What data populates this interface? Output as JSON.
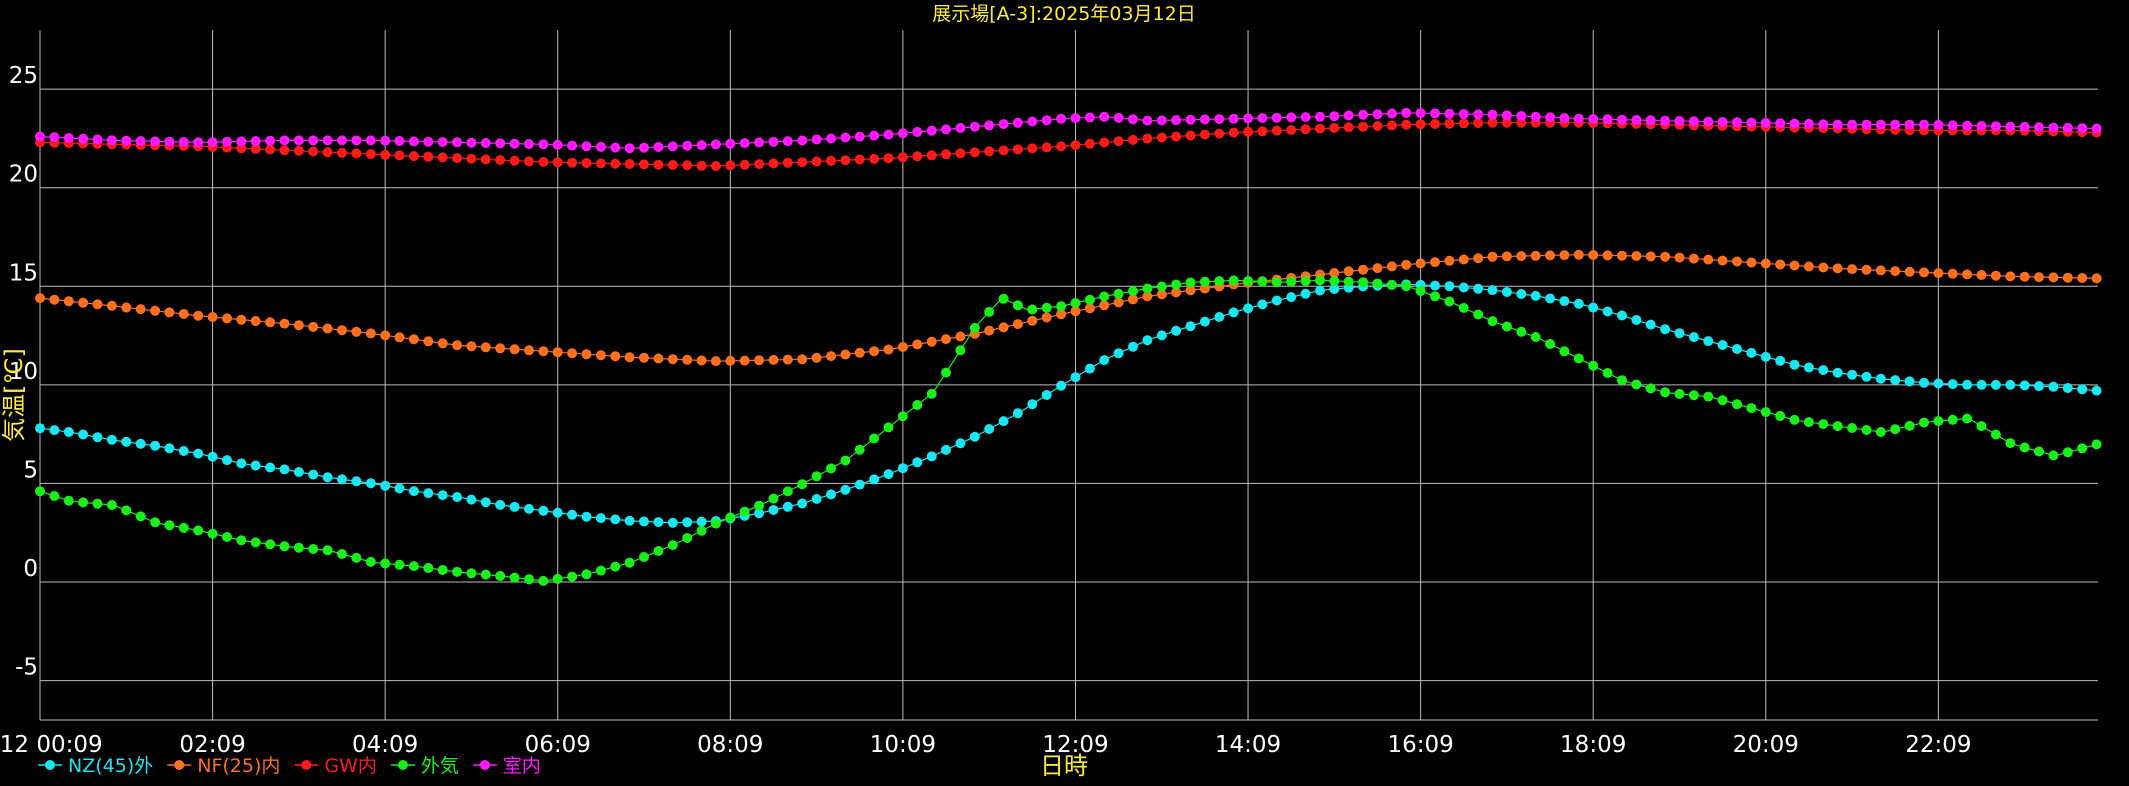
{
  "chart_data": {
    "type": "line",
    "title": "展示場[A-3]:2025年03月12日",
    "xlabel": "日時",
    "ylabel": "気温[℃]",
    "ylim": [
      -7,
      28
    ],
    "xlim_hours": [
      0.15,
      24.0
    ],
    "y_ticks": [
      "25",
      "20",
      "15",
      "10",
      "5",
      "0",
      "-5"
    ],
    "x_tick_labels": [
      "3/12 00:09",
      "02:09",
      "04:09",
      "06:09",
      "08:09",
      "10:09",
      "12:09",
      "14:09",
      "16:09",
      "18:09",
      "20:09",
      "22:09"
    ],
    "grid": true,
    "legend_position": "bottom-left",
    "colors": {
      "NZ(45)外": "#18e6f0",
      "NF(25)内": "#ff6f1e",
      "GW内": "#ff1a1a",
      "外気": "#19f019",
      "室内": "#ff19ff"
    },
    "series": [
      {
        "name": "NZ(45)外",
        "color": "#18e6f0",
        "points": [
          [
            0.15,
            7.8
          ],
          [
            0.5,
            7.6
          ],
          [
            1,
            7.2
          ],
          [
            1.5,
            6.9
          ],
          [
            2,
            6.5
          ],
          [
            2.5,
            6.0
          ],
          [
            3,
            5.7
          ],
          [
            3.5,
            5.3
          ],
          [
            4,
            5.0
          ],
          [
            4.5,
            4.6
          ],
          [
            5,
            4.3
          ],
          [
            5.5,
            3.9
          ],
          [
            6,
            3.6
          ],
          [
            6.5,
            3.3
          ],
          [
            7,
            3.1
          ],
          [
            7.5,
            3.0
          ],
          [
            8,
            3.1
          ],
          [
            8.5,
            3.5
          ],
          [
            9,
            4.0
          ],
          [
            9.5,
            4.7
          ],
          [
            10,
            5.5
          ],
          [
            10.5,
            6.4
          ],
          [
            11,
            7.4
          ],
          [
            11.5,
            8.6
          ],
          [
            12,
            10.0
          ],
          [
            12.5,
            11.3
          ],
          [
            13,
            12.3
          ],
          [
            13.5,
            13.0
          ],
          [
            14,
            13.7
          ],
          [
            14.5,
            14.3
          ],
          [
            15,
            14.8
          ],
          [
            15.5,
            15.0
          ],
          [
            16,
            15.1
          ],
          [
            16.5,
            15.0
          ],
          [
            17,
            14.8
          ],
          [
            17.5,
            14.5
          ],
          [
            18,
            14.1
          ],
          [
            18.5,
            13.5
          ],
          [
            19,
            12.8
          ],
          [
            19.5,
            12.2
          ],
          [
            20,
            11.6
          ],
          [
            20.5,
            11.0
          ],
          [
            21,
            10.6
          ],
          [
            21.5,
            10.3
          ],
          [
            22,
            10.1
          ],
          [
            22.5,
            10.0
          ],
          [
            23,
            10.0
          ],
          [
            23.5,
            9.9
          ],
          [
            24,
            9.7
          ]
        ]
      },
      {
        "name": "NF(25)内",
        "color": "#ff6f1e",
        "points": [
          [
            0.15,
            14.4
          ],
          [
            1,
            14.0
          ],
          [
            2,
            13.5
          ],
          [
            3,
            13.1
          ],
          [
            4,
            12.6
          ],
          [
            5,
            12.0
          ],
          [
            6,
            11.7
          ],
          [
            7,
            11.4
          ],
          [
            8,
            11.2
          ],
          [
            9,
            11.3
          ],
          [
            10,
            11.8
          ],
          [
            11,
            12.6
          ],
          [
            12,
            13.6
          ],
          [
            13,
            14.5
          ],
          [
            14,
            15.1
          ],
          [
            15,
            15.6
          ],
          [
            16,
            16.1
          ],
          [
            17,
            16.5
          ],
          [
            18,
            16.6
          ],
          [
            19,
            16.5
          ],
          [
            20,
            16.2
          ],
          [
            21,
            15.9
          ],
          [
            22,
            15.7
          ],
          [
            23,
            15.5
          ],
          [
            24,
            15.4
          ]
        ]
      },
      {
        "name": "GW内",
        "color": "#ff1a1a",
        "points": [
          [
            0.15,
            22.3
          ],
          [
            1,
            22.2
          ],
          [
            2,
            22.1
          ],
          [
            3,
            21.9
          ],
          [
            4,
            21.7
          ],
          [
            5,
            21.5
          ],
          [
            6,
            21.3
          ],
          [
            7,
            21.2
          ],
          [
            8,
            21.1
          ],
          [
            9,
            21.3
          ],
          [
            10,
            21.5
          ],
          [
            11,
            21.8
          ],
          [
            12,
            22.1
          ],
          [
            13,
            22.5
          ],
          [
            14,
            22.8
          ],
          [
            15,
            23.0
          ],
          [
            16,
            23.2
          ],
          [
            17,
            23.3
          ],
          [
            18,
            23.3
          ],
          [
            19,
            23.2
          ],
          [
            20,
            23.1
          ],
          [
            21,
            23.0
          ],
          [
            22,
            22.9
          ],
          [
            23,
            22.9
          ],
          [
            24,
            22.8
          ]
        ]
      },
      {
        "name": "外気",
        "color": "#19f019",
        "points": [
          [
            0.15,
            4.6
          ],
          [
            0.5,
            4.1
          ],
          [
            1,
            3.9
          ],
          [
            1.5,
            3.0
          ],
          [
            2,
            2.6
          ],
          [
            2.5,
            2.1
          ],
          [
            3,
            1.8
          ],
          [
            3.5,
            1.6
          ],
          [
            4,
            1.0
          ],
          [
            4.5,
            0.8
          ],
          [
            5,
            0.5
          ],
          [
            5.5,
            0.3
          ],
          [
            6,
            0.05
          ],
          [
            6.5,
            0.4
          ],
          [
            7,
            1.0
          ],
          [
            7.5,
            1.9
          ],
          [
            8,
            3.0
          ],
          [
            8.5,
            3.9
          ],
          [
            9,
            5.0
          ],
          [
            9.5,
            6.2
          ],
          [
            10,
            7.9
          ],
          [
            10.5,
            9.6
          ],
          [
            11,
            13.0
          ],
          [
            11.3,
            14.4
          ],
          [
            11.6,
            13.8
          ],
          [
            12,
            14.0
          ],
          [
            12.5,
            14.5
          ],
          [
            13,
            14.9
          ],
          [
            13.5,
            15.2
          ],
          [
            14,
            15.3
          ],
          [
            14.5,
            15.2
          ],
          [
            15,
            15.3
          ],
          [
            15.5,
            15.2
          ],
          [
            16,
            15.0
          ],
          [
            16.5,
            14.2
          ],
          [
            17,
            13.2
          ],
          [
            17.5,
            12.4
          ],
          [
            18,
            11.3
          ],
          [
            18.5,
            10.2
          ],
          [
            19,
            9.6
          ],
          [
            19.5,
            9.4
          ],
          [
            20,
            8.8
          ],
          [
            20.5,
            8.2
          ],
          [
            21,
            7.9
          ],
          [
            21.5,
            7.6
          ],
          [
            22,
            8.1
          ],
          [
            22.5,
            8.3
          ],
          [
            23,
            7.0
          ],
          [
            23.5,
            6.4
          ],
          [
            24,
            7.0
          ]
        ]
      },
      {
        "name": "室内",
        "color": "#ff19ff",
        "points": [
          [
            0.15,
            22.6
          ],
          [
            1,
            22.4
          ],
          [
            2,
            22.3
          ],
          [
            3,
            22.4
          ],
          [
            4,
            22.4
          ],
          [
            5,
            22.3
          ],
          [
            6,
            22.2
          ],
          [
            7,
            22.0
          ],
          [
            8,
            22.2
          ],
          [
            9,
            22.4
          ],
          [
            10,
            22.7
          ],
          [
            11,
            23.1
          ],
          [
            12,
            23.5
          ],
          [
            12.5,
            23.6
          ],
          [
            13,
            23.4
          ],
          [
            14,
            23.5
          ],
          [
            15,
            23.6
          ],
          [
            16,
            23.8
          ],
          [
            17,
            23.7
          ],
          [
            18,
            23.5
          ],
          [
            19,
            23.4
          ],
          [
            20,
            23.3
          ],
          [
            21,
            23.2
          ],
          [
            22,
            23.2
          ],
          [
            23,
            23.1
          ],
          [
            24,
            23.0
          ]
        ]
      }
    ]
  }
}
